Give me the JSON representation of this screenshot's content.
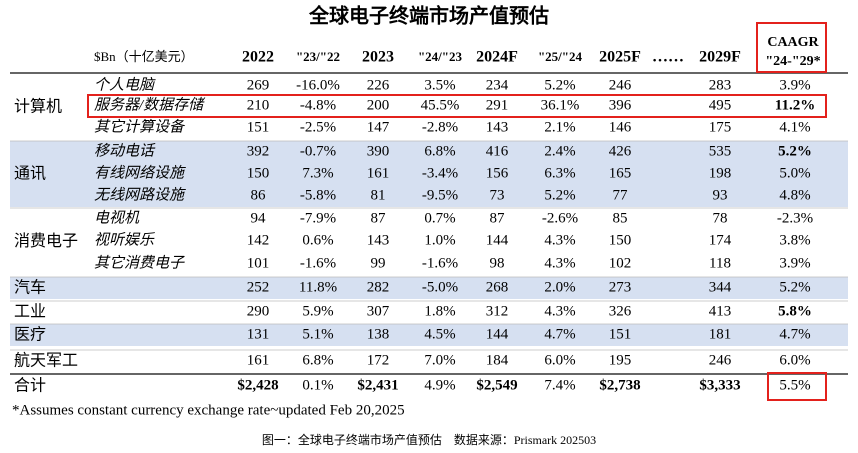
{
  "title": "全球电子终端市场产值预估",
  "header": {
    "unit": "$Bn（十亿美元）",
    "columns": [
      "2022",
      "\"23/\"22",
      "2023",
      "\"24/\"23",
      "2024F",
      "\"25/\"24",
      "2025F",
      "……",
      "2029F"
    ],
    "caagr": [
      "CAAGR",
      "\"24-\"29*"
    ]
  },
  "groups": [
    {
      "name": "计算机",
      "shaded": false,
      "rows": [
        {
          "item": "个人电脑",
          "cells": [
            "269",
            "-16.0%",
            "226",
            "3.5%",
            "234",
            "5.2%",
            "246",
            "283",
            "3.9%"
          ]
        },
        {
          "item": "服务器/数据存储",
          "cells": [
            "210",
            "-4.8%",
            "200",
            "45.5%",
            "291",
            "36.1%",
            "396",
            "495",
            "11.2%"
          ],
          "caagr_bold": true,
          "boxed": true
        },
        {
          "item": "其它计算设备",
          "cells": [
            "151",
            "-2.5%",
            "147",
            "-2.8%",
            "143",
            "2.1%",
            "146",
            "175",
            "4.1%"
          ]
        }
      ]
    },
    {
      "name": "通讯",
      "shaded": true,
      "rows": [
        {
          "item": "移动电话",
          "cells": [
            "392",
            "-0.7%",
            "390",
            "6.8%",
            "416",
            "2.4%",
            "426",
            "535",
            "5.2%"
          ],
          "caagr_bold": true
        },
        {
          "item": "有线网络设施",
          "cells": [
            "150",
            "7.3%",
            "161",
            "-3.4%",
            "156",
            "6.3%",
            "165",
            "198",
            "5.0%"
          ]
        },
        {
          "item": "无线网路设施",
          "cells": [
            "86",
            "-5.8%",
            "81",
            "-9.5%",
            "73",
            "5.2%",
            "77",
            "93",
            "4.8%"
          ]
        }
      ]
    },
    {
      "name": "消费电子",
      "shaded": false,
      "rows": [
        {
          "item": "电视机",
          "cells": [
            "94",
            "-7.9%",
            "87",
            "0.7%",
            "87",
            "-2.6%",
            "85",
            "78",
            "-2.3%"
          ]
        },
        {
          "item": "视听娱乐",
          "cells": [
            "142",
            "0.6%",
            "143",
            "1.0%",
            "144",
            "4.3%",
            "150",
            "174",
            "3.8%"
          ]
        },
        {
          "item": "其它消费电子",
          "cells": [
            "101",
            "-1.6%",
            "99",
            "-1.6%",
            "98",
            "4.3%",
            "102",
            "118",
            "3.9%"
          ]
        }
      ]
    },
    {
      "name": "汽车",
      "shaded": true,
      "rows": [
        {
          "cells": [
            "252",
            "11.8%",
            "282",
            "-5.0%",
            "268",
            "2.0%",
            "273",
            "344",
            "5.2%"
          ]
        }
      ]
    },
    {
      "name": "工业",
      "shaded": false,
      "rows": [
        {
          "cells": [
            "290",
            "5.9%",
            "307",
            "1.8%",
            "312",
            "4.3%",
            "326",
            "413",
            "5.8%"
          ],
          "caagr_bold": true
        }
      ]
    },
    {
      "name": "医疗",
      "shaded": true,
      "rows": [
        {
          "cells": [
            "131",
            "5.1%",
            "138",
            "4.5%",
            "144",
            "4.7%",
            "151",
            "181",
            "4.7%"
          ]
        }
      ]
    },
    {
      "name": "航天军工",
      "shaded": false,
      "rows": [
        {
          "cells": [
            "161",
            "6.8%",
            "172",
            "7.0%",
            "184",
            "6.0%",
            "195",
            "246",
            "6.0%"
          ]
        }
      ]
    }
  ],
  "total": {
    "name": "合计",
    "cells": [
      "$2,428",
      "0.1%",
      "$2,431",
      "4.9%",
      "$2,549",
      "7.4%",
      "$2,738",
      "$3,333",
      "5.5%"
    ]
  },
  "footnote": "*Assumes constant currency exchange rate~updated Feb 20,2025",
  "caption": "图一：全球电子终端市场产值预估    数据来源：Prismark 202503"
}
